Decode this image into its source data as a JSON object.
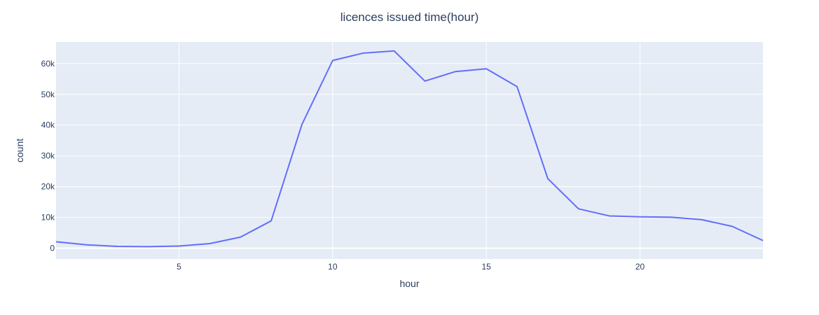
{
  "chart_data": {
    "type": "line",
    "title": "licences issued time(hour)",
    "xlabel": "hour",
    "ylabel": "count",
    "xlim": [
      1,
      24
    ],
    "ylim": [
      -3500,
      67000
    ],
    "x_ticks": [
      5,
      10,
      15,
      20
    ],
    "x_tick_labels": [
      "5",
      "10",
      "15",
      "20"
    ],
    "y_ticks": [
      0,
      10000,
      20000,
      30000,
      40000,
      50000,
      60000
    ],
    "y_tick_labels": [
      "0",
      "10k",
      "20k",
      "30k",
      "40k",
      "50k",
      "60k"
    ],
    "grid": true,
    "series": [
      {
        "x": [
          1,
          2,
          3,
          4,
          5,
          6,
          7,
          8,
          9,
          10,
          11,
          12,
          13,
          14,
          15,
          16,
          17,
          18,
          19,
          20,
          21,
          22,
          23,
          24
        ],
        "values": [
          2100,
          1100,
          600,
          500,
          700,
          1500,
          3600,
          8900,
          40200,
          61000,
          63400,
          64100,
          54300,
          57400,
          58300,
          52500,
          22600,
          12800,
          10500,
          10200,
          10100,
          9300,
          7100,
          2500
        ]
      }
    ],
    "colors": {
      "plot_bg": "#e5ecf6",
      "grid": "#ffffff",
      "line": "#636efa",
      "text": "#2a3f5f"
    }
  }
}
